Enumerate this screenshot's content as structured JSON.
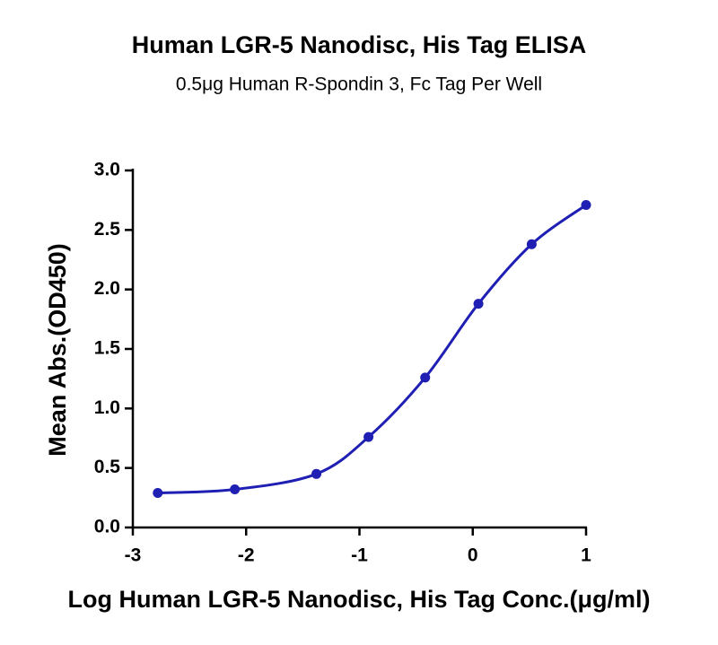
{
  "chart_data": {
    "type": "line",
    "title": "Human LGR-5 Nanodisc, His Tag ELISA",
    "subtitle": "0.5μg Human R-Spondin 3, Fc Tag Per Well",
    "x_label": "Log Human LGR-5 Nanodisc, His Tag Conc.(μg/ml)",
    "y_label": "Mean Abs.(OD450)",
    "x": [
      -2.78,
      -2.1,
      -1.38,
      -0.92,
      -0.42,
      0.05,
      0.52,
      1.0
    ],
    "values": [
      0.29,
      0.32,
      0.45,
      0.76,
      1.26,
      1.88,
      2.38,
      2.71
    ],
    "color": "#1f1fb4",
    "xlim": [
      -3,
      1
    ],
    "xticks": [
      -3,
      -2,
      -1,
      0,
      1
    ],
    "ylim": [
      0,
      3
    ],
    "yticks": [
      {
        "value": 0,
        "label": "0.0"
      },
      {
        "value": 0.5,
        "label": "0.5"
      },
      {
        "value": 1,
        "label": "1.0"
      },
      {
        "value": 1.5,
        "label": "1.5"
      },
      {
        "value": 2,
        "label": "2.0"
      },
      {
        "value": 2.5,
        "label": "2.5"
      },
      {
        "value": 3,
        "label": "3.0"
      }
    ]
  }
}
